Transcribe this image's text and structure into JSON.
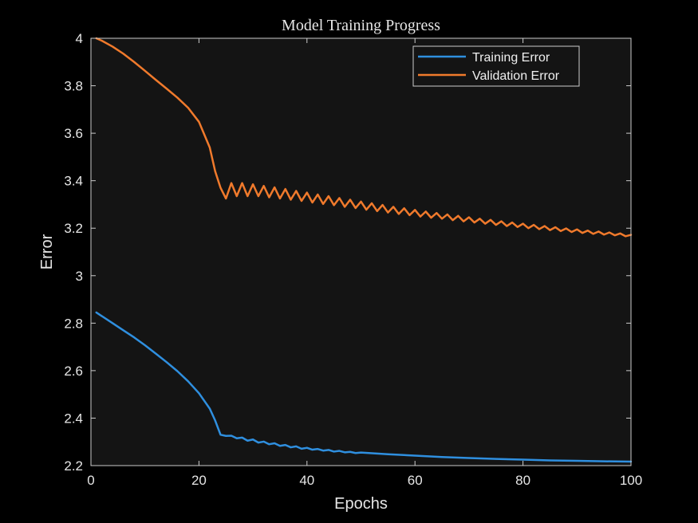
{
  "chart_data": {
    "type": "line",
    "title": "Model Training Progress",
    "xlabel": "Epochs",
    "ylabel": "Error",
    "xlim": [
      0,
      100
    ],
    "ylim": [
      2.2,
      4
    ],
    "xticks": [
      0,
      20,
      40,
      60,
      80,
      100
    ],
    "xtick_labels": [
      "0",
      "20",
      "40",
      "60",
      "80",
      "100"
    ],
    "yticks": [
      2.2,
      2.4,
      2.6,
      2.8,
      3,
      3.2,
      3.4,
      3.6,
      3.8,
      4
    ],
    "ytick_labels": [
      "2.2",
      "2.4",
      "2.6",
      "2.8",
      "3",
      "3.2",
      "3.4",
      "3.6",
      "3.8",
      "4"
    ],
    "grid": false,
    "legend_position": "top-right",
    "background": "#141414",
    "axis_color": "#cccccc",
    "series": [
      {
        "name": "Training Error",
        "color": "#2f8fdf",
        "x": [
          1,
          2,
          4,
          6,
          8,
          10,
          12,
          14,
          16,
          18,
          20,
          22,
          23,
          24,
          25,
          26,
          27,
          28,
          29,
          30,
          31,
          32,
          33,
          34,
          35,
          36,
          37,
          38,
          39,
          40,
          41,
          42,
          43,
          44,
          45,
          46,
          47,
          48,
          49,
          50,
          55,
          60,
          65,
          70,
          75,
          80,
          85,
          90,
          95,
          100
        ],
        "y": [
          2.845,
          2.83,
          2.8,
          2.77,
          2.74,
          2.707,
          2.672,
          2.636,
          2.598,
          2.555,
          2.505,
          2.44,
          2.39,
          2.33,
          2.325,
          2.326,
          2.315,
          2.318,
          2.305,
          2.31,
          2.297,
          2.301,
          2.29,
          2.294,
          2.283,
          2.287,
          2.277,
          2.281,
          2.271,
          2.275,
          2.267,
          2.27,
          2.263,
          2.266,
          2.259,
          2.262,
          2.256,
          2.258,
          2.253,
          2.255,
          2.248,
          2.242,
          2.236,
          2.232,
          2.228,
          2.225,
          2.222,
          2.22,
          2.218,
          2.217
        ]
      },
      {
        "name": "Validation Error",
        "color": "#f07a2c",
        "x": [
          1,
          2,
          4,
          6,
          8,
          10,
          12,
          14,
          16,
          18,
          20,
          22,
          23,
          24,
          25,
          26,
          27,
          28,
          29,
          30,
          31,
          32,
          33,
          34,
          35,
          36,
          37,
          38,
          39,
          40,
          41,
          42,
          43,
          44,
          45,
          46,
          47,
          48,
          49,
          50,
          51,
          52,
          53,
          54,
          55,
          56,
          57,
          58,
          59,
          60,
          61,
          62,
          63,
          64,
          65,
          66,
          67,
          68,
          69,
          70,
          71,
          72,
          73,
          74,
          75,
          76,
          77,
          78,
          79,
          80,
          81,
          82,
          83,
          84,
          85,
          86,
          87,
          88,
          89,
          90,
          91,
          92,
          93,
          94,
          95,
          96,
          97,
          98,
          99,
          100
        ],
        "y": [
          4.0,
          3.99,
          3.965,
          3.935,
          3.9,
          3.863,
          3.825,
          3.788,
          3.75,
          3.707,
          3.648,
          3.54,
          3.44,
          3.37,
          3.325,
          3.39,
          3.335,
          3.39,
          3.335,
          3.385,
          3.335,
          3.378,
          3.33,
          3.372,
          3.325,
          3.365,
          3.32,
          3.357,
          3.315,
          3.35,
          3.308,
          3.342,
          3.302,
          3.335,
          3.297,
          3.327,
          3.29,
          3.32,
          3.285,
          3.312,
          3.278,
          3.305,
          3.272,
          3.298,
          3.266,
          3.29,
          3.26,
          3.284,
          3.255,
          3.277,
          3.249,
          3.27,
          3.244,
          3.264,
          3.24,
          3.258,
          3.234,
          3.252,
          3.229,
          3.246,
          3.224,
          3.24,
          3.219,
          3.235,
          3.214,
          3.229,
          3.209,
          3.224,
          3.205,
          3.219,
          3.2,
          3.214,
          3.196,
          3.209,
          3.192,
          3.204,
          3.188,
          3.199,
          3.184,
          3.195,
          3.18,
          3.19,
          3.176,
          3.186,
          3.173,
          3.182,
          3.17,
          3.178,
          3.166,
          3.172
        ]
      }
    ]
  }
}
